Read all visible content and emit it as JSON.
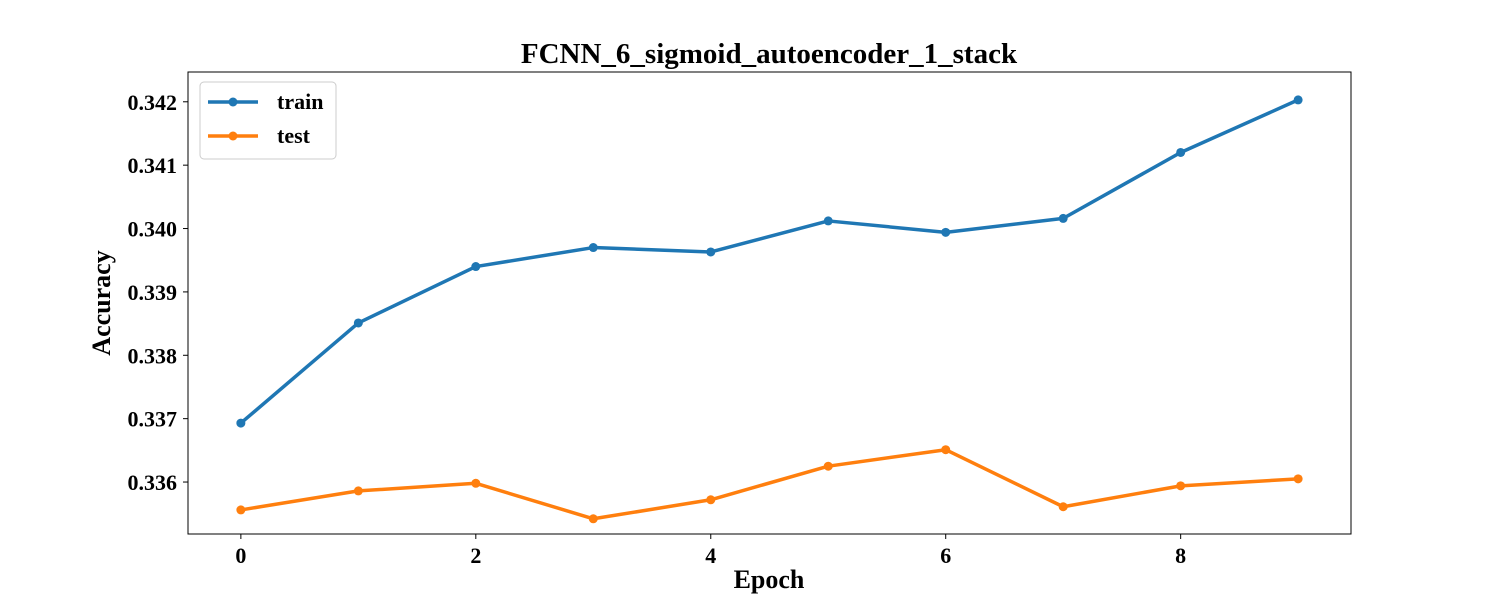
{
  "chart_data": {
    "type": "line",
    "title": "FCNN_6_sigmoid_autoencoder_1_stack",
    "xlabel": "Epoch",
    "ylabel": "Accuracy",
    "x": [
      0,
      1,
      2,
      3,
      4,
      5,
      6,
      7,
      8,
      9
    ],
    "xticks": [
      0,
      2,
      4,
      6,
      8
    ],
    "xtick_labels": [
      "0",
      "2",
      "4",
      "6",
      "8"
    ],
    "yticks": [
      0.336,
      0.337,
      0.338,
      0.339,
      0.34,
      0.341,
      0.342
    ],
    "ytick_labels": [
      "0.336",
      "0.337",
      "0.338",
      "0.339",
      "0.340",
      "0.341",
      "0.342"
    ],
    "xlim": [
      -0.45,
      9.45
    ],
    "ylim": [
      0.33518,
      0.34247
    ],
    "grid": false,
    "legend_position": "top-left",
    "series": [
      {
        "name": "train",
        "color": "#1f77b4",
        "marker": "circle",
        "values": [
          0.33693,
          0.33851,
          0.3394,
          0.3397,
          0.33963,
          0.34012,
          0.33994,
          0.34016,
          0.3412,
          0.34203
        ]
      },
      {
        "name": "test",
        "color": "#ff7f0e",
        "marker": "circle",
        "values": [
          0.33556,
          0.33586,
          0.33598,
          0.33542,
          0.33572,
          0.33625,
          0.33651,
          0.33561,
          0.33594,
          0.33605
        ]
      }
    ]
  }
}
